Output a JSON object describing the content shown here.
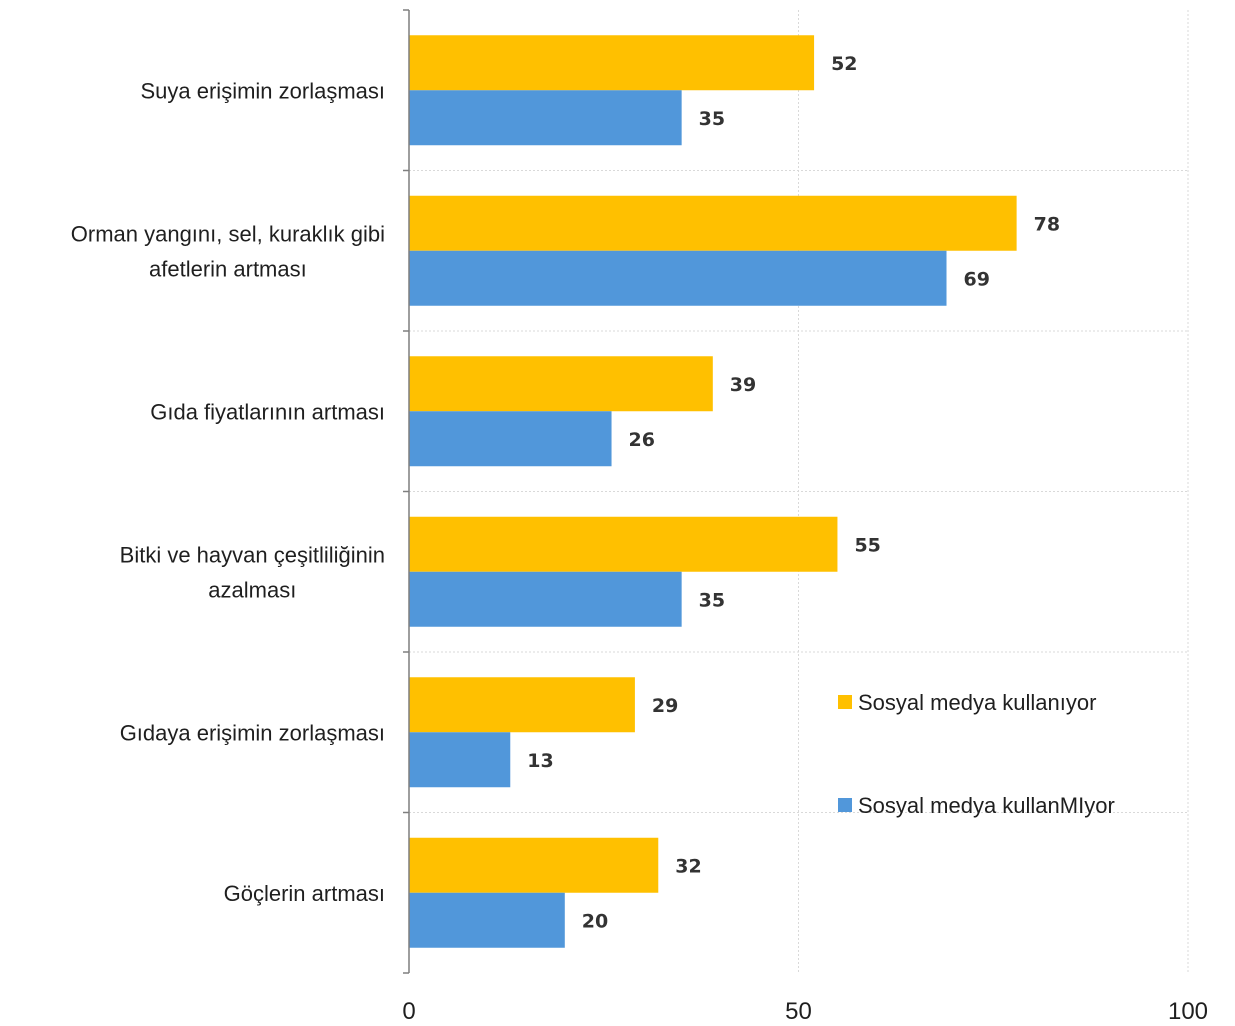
{
  "chart_data": {
    "type": "bar",
    "orientation": "horizontal",
    "categories": [
      [
        "Suya erişimin zorlaşması"
      ],
      [
        "Orman yangını, sel, kuraklık gibi",
        "afetlerin artması"
      ],
      [
        "Gıda fiyatlarının artması"
      ],
      [
        "Bitki ve hayvan çeşitliliğinin",
        "azalması"
      ],
      [
        "Gıdaya erişimin zorlaşması"
      ],
      [
        "Göçlerin artması"
      ]
    ],
    "series": [
      {
        "name": "Sosyal medya kullanıyor",
        "color": "#FFC000",
        "values": [
          52,
          78,
          39,
          55,
          29,
          32
        ]
      },
      {
        "name": "Sosyal medya kullanMIyor",
        "color": "#5197DA",
        "values": [
          35,
          69,
          26,
          35,
          13,
          20
        ]
      }
    ],
    "xlim": [
      0,
      100
    ],
    "xticks": [
      0,
      50,
      100
    ],
    "xtick_labels": [
      "0",
      "50",
      "100"
    ],
    "grid": "vertical dotted",
    "legend_position": "right"
  }
}
